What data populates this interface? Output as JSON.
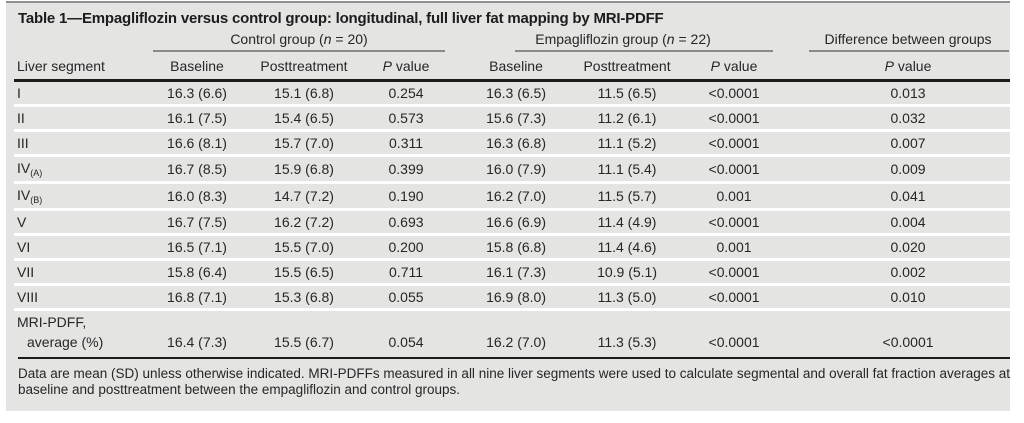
{
  "title": "Table 1—Empagliflozin versus control group: longitudinal, full liver fat mapping by MRI-PDFF",
  "colors": {
    "panel_bg": "#e4e4e3",
    "text": "#262626",
    "dark_rule": "#1c1c1c",
    "group_rule": "#8a8a8a",
    "row_separator": "#ffffff"
  },
  "table": {
    "groups": [
      {
        "pre": "Control group (",
        "it": "n",
        "post": " = 20)"
      },
      {
        "pre": "Empagliflozin group (",
        "it": "n",
        "post": " = 22)"
      },
      {
        "label": "Difference between groups"
      }
    ],
    "col_headers": {
      "segment": "Liver segment",
      "baseline": "Baseline",
      "posttreatment": "Posttreatment",
      "p_it": "P",
      "p_rest": " value"
    },
    "rows": [
      {
        "segment": "I",
        "cells": [
          "16.3 (6.6)",
          "15.1 (6.8)",
          "0.254",
          "16.3 (6.5)",
          "11.5 (6.5)",
          "<0.0001",
          "0.013"
        ]
      },
      {
        "segment": "II",
        "cells": [
          "16.1 (7.5)",
          "15.4 (6.5)",
          "0.573",
          "15.6 (7.3)",
          "11.2 (6.1)",
          "<0.0001",
          "0.032"
        ]
      },
      {
        "segment": "III",
        "cells": [
          "16.6 (8.1)",
          "15.7 (7.0)",
          "0.311",
          "16.3 (6.8)",
          "11.1 (5.2)",
          "<0.0001",
          "0.007"
        ]
      },
      {
        "segment": "IV",
        "segment_sub": "(A)",
        "cells": [
          "16.7 (8.5)",
          "15.9 (6.8)",
          "0.399",
          "16.0 (7.9)",
          "11.1 (5.4)",
          "<0.0001",
          "0.009"
        ]
      },
      {
        "segment": "IV",
        "segment_sub": "(B)",
        "cells": [
          "16.0 (8.3)",
          "14.7 (7.2)",
          "0.190",
          "16.2 (7.0)",
          "11.5 (5.7)",
          "0.001",
          "0.041"
        ]
      },
      {
        "segment": "V",
        "cells": [
          "16.7 (7.5)",
          "16.2 (7.2)",
          "0.693",
          "16.6 (6.9)",
          "11.4 (4.9)",
          "<0.0001",
          "0.004"
        ]
      },
      {
        "segment": "VI",
        "cells": [
          "16.5 (7.1)",
          "15.5 (7.0)",
          "0.200",
          "15.8 (6.8)",
          "11.4 (4.6)",
          "0.001",
          "0.020"
        ]
      },
      {
        "segment": "VII",
        "cells": [
          "15.8 (6.4)",
          "15.5 (6.5)",
          "0.711",
          "16.1 (7.3)",
          "10.9 (5.1)",
          "<0.0001",
          "0.002"
        ]
      },
      {
        "segment": "VIII",
        "cells": [
          "16.8 (7.1)",
          "15.3 (6.8)",
          "0.055",
          "16.9 (8.0)",
          "11.3 (5.0)",
          "<0.0001",
          "0.010"
        ]
      },
      {
        "segment": "MRI-PDFF,",
        "segment_line2": "average (%)",
        "cells": [
          "16.4 (7.3)",
          "15.5 (6.7)",
          "0.054",
          "16.2 (7.0)",
          "11.3 (5.3)",
          "<0.0001",
          "<0.0001"
        ]
      }
    ],
    "footnote": "Data are mean (SD) unless otherwise indicated. MRI-PDFFs measured in all nine liver segments were used to calculate segmental and overall fat fraction averages at baseline and posttreatment between the empagliflozin and control groups."
  }
}
